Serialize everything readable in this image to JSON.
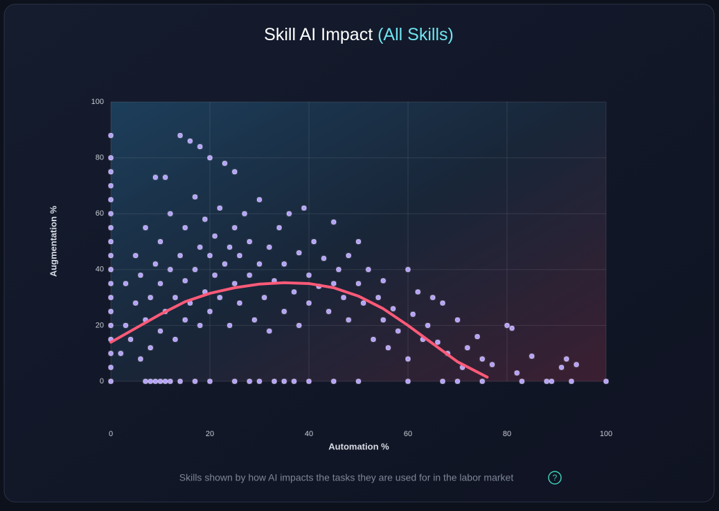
{
  "chart_data": {
    "type": "scatter",
    "title": "Skill AI Impact",
    "title_highlight": "(All Skills)",
    "x_label": "Automation %",
    "y_label": "Augmentation %",
    "caption": "Skills shown by how AI impacts the tasks they are used for in the labor market",
    "help_icon": "?",
    "xlim": [
      0,
      100
    ],
    "ylim": [
      0,
      100
    ],
    "xticks": [
      0,
      20,
      40,
      60,
      80,
      100
    ],
    "yticks": [
      0,
      20,
      40,
      60,
      80,
      100
    ],
    "grid": true,
    "color": "#b7a3ff",
    "x": [
      0,
      7,
      8,
      9,
      10,
      11,
      12,
      14,
      17,
      20,
      25,
      28,
      30,
      33,
      35,
      37,
      40,
      45,
      50,
      60,
      67,
      70,
      75,
      83,
      88,
      89,
      93,
      100,
      0,
      0,
      0,
      0,
      0,
      0,
      0,
      0,
      0,
      0,
      0,
      0,
      0,
      0,
      0,
      0,
      0,
      2,
      3,
      3,
      4,
      5,
      5,
      6,
      6,
      7,
      7,
      8,
      8,
      9,
      9,
      10,
      10,
      10,
      11,
      11,
      12,
      12,
      13,
      13,
      14,
      14,
      15,
      15,
      15,
      16,
      16,
      17,
      17,
      18,
      18,
      18,
      19,
      19,
      20,
      20,
      20,
      21,
      21,
      22,
      22,
      23,
      23,
      24,
      24,
      25,
      25,
      25,
      26,
      26,
      27,
      28,
      28,
      29,
      30,
      30,
      31,
      32,
      32,
      33,
      34,
      35,
      35,
      36,
      37,
      38,
      38,
      39,
      40,
      40,
      41,
      42,
      43,
      44,
      45,
      45,
      46,
      47,
      48,
      48,
      50,
      50,
      51,
      52,
      53,
      54,
      55,
      55,
      56,
      57,
      58,
      60,
      60,
      61,
      62,
      63,
      64,
      65,
      66,
      67,
      68,
      70,
      71,
      72,
      74,
      75,
      77,
      80,
      81,
      82,
      85,
      91,
      92,
      94
    ],
    "values": [
      0,
      0,
      0,
      0,
      0,
      0,
      0,
      0,
      0,
      0,
      0,
      0,
      0,
      0,
      0,
      0,
      0,
      0,
      0,
      0,
      0,
      0,
      0,
      0,
      0,
      0,
      0,
      0,
      5,
      10,
      15,
      20,
      25,
      30,
      35,
      40,
      45,
      50,
      55,
      60,
      65,
      70,
      75,
      80,
      88,
      10,
      20,
      35,
      15,
      28,
      45,
      8,
      38,
      22,
      55,
      30,
      12,
      42,
      73,
      18,
      35,
      50,
      25,
      73,
      40,
      60,
      15,
      30,
      45,
      88,
      22,
      36,
      55,
      28,
      86,
      40,
      66,
      20,
      48,
      84,
      32,
      58,
      25,
      45,
      80,
      38,
      52,
      30,
      62,
      42,
      78,
      20,
      48,
      35,
      55,
      75,
      28,
      45,
      60,
      38,
      50,
      22,
      42,
      65,
      30,
      48,
      18,
      36,
      55,
      25,
      42,
      60,
      32,
      46,
      20,
      62,
      38,
      28,
      50,
      34,
      44,
      25,
      35,
      57,
      40,
      30,
      45,
      22,
      50,
      35,
      28,
      40,
      15,
      30,
      36,
      22,
      12,
      26,
      18,
      40,
      8,
      24,
      32,
      15,
      20,
      30,
      14,
      28,
      10,
      22,
      5,
      12,
      16,
      8,
      6,
      20,
      19,
      3,
      9,
      5,
      8,
      6
    ],
    "trend": {
      "color": "#ff5a78",
      "x": [
        0,
        5,
        10,
        15,
        20,
        25,
        30,
        35,
        40,
        45,
        50,
        55,
        60,
        65,
        70,
        76
      ],
      "values": [
        14,
        19,
        24,
        28.5,
        31.5,
        33.5,
        34.8,
        35.3,
        35,
        33.5,
        30.5,
        26,
        20,
        13.5,
        7,
        1.5
      ]
    }
  }
}
